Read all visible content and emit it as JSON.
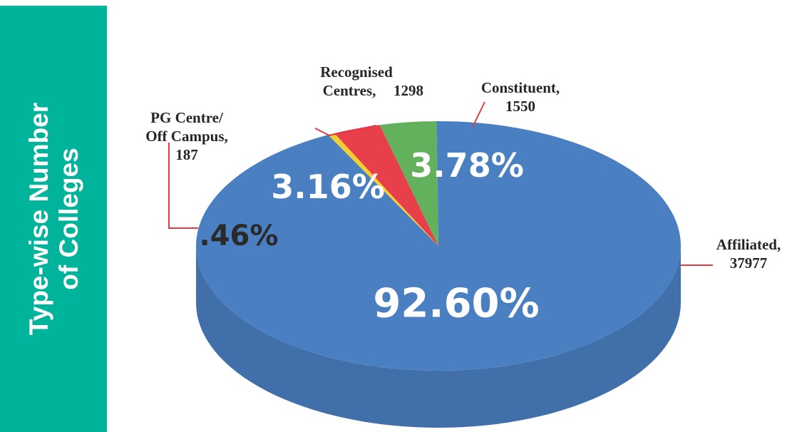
{
  "chart_data": {
    "type": "pie",
    "title": "Type-wise Number of Colleges",
    "categories": [
      "Constituent,",
      "Affiliated,",
      "PG Centre/ Off Campus,",
      "Recognised Centres,"
    ],
    "counts": [
      1550,
      37977,
      187,
      1298
    ],
    "values": [
      3.78,
      92.6,
      0.46,
      3.16
    ],
    "value_labels": [
      "3.78%",
      "92.60%",
      ".46%",
      "3.16%"
    ],
    "colors": [
      "#63b05d",
      "#4a80c2",
      "#f2cf2f",
      "#e8404a"
    ]
  }
}
